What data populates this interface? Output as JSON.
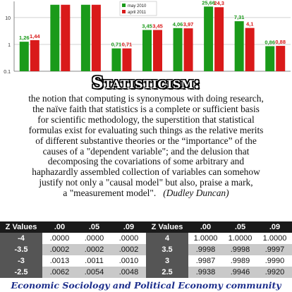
{
  "chart_data": {
    "type": "bar",
    "y_scale": "log",
    "ylim": [
      0.1,
      40
    ],
    "y_ticks": [
      "0.1",
      "1",
      "10"
    ],
    "grid": true,
    "legend_placement": "top-center",
    "series": [
      {
        "name": "may 2010",
        "color": "#1a9a1a",
        "values": [
          1.26,
          30,
          30,
          0.71,
          3.45,
          4.06,
          25.66,
          7.31,
          0.86
        ],
        "labels": [
          "1,26",
          "",
          "",
          "0,71",
          "3,45",
          "4,06",
          "25,66",
          "7,31",
          "0,86"
        ]
      },
      {
        "name": "april 2011",
        "color": "#d91a1a",
        "values": [
          1.44,
          30,
          30,
          0.71,
          3.45,
          3.97,
          24.3,
          4.1,
          0.88
        ],
        "labels": [
          "1,44",
          "",
          "",
          "0,71",
          "3,45",
          "3,97",
          "24,3",
          "4,1",
          "0,88"
        ]
      }
    ],
    "categories": [
      "",
      "",
      "",
      "",
      "",
      "",
      "",
      "",
      ""
    ]
  },
  "headline": "Statisticism:",
  "definition": {
    "lines": [
      "the notion that computing is synonymous with doing research,",
      "the naïve faith that statistics is a complete or sufficient basis",
      "for scientific methodology, the superstition that statistical",
      "formulas exist for evaluating such things as the relative merits",
      "of different substantive theories or the “importance” of the",
      "causes of a \"dependent variable\"; and the delusion that",
      "decomposing the covariations of some arbitrary and",
      "haphazardly assembled collection of variables can somehow",
      "justify not only a \"causal model\" but also, praise a mark,"
    ],
    "last_line": "a \"measurement model\".",
    "author": "(Dudley Duncan)"
  },
  "z_table": {
    "left": {
      "header": [
        "Z Values",
        ".00",
        ".05",
        ".09"
      ],
      "rows": [
        [
          "-4",
          ".0000",
          ".0000",
          ".0000"
        ],
        [
          "-3.5",
          ".0002",
          ".0002",
          ".0002"
        ],
        [
          "-3",
          ".0013",
          ".0011",
          ".0010"
        ],
        [
          "-2.5",
          ".0062",
          ".0054",
          ".0048"
        ]
      ]
    },
    "right": {
      "header": [
        "Z Values",
        ".00",
        ".05",
        ".09"
      ],
      "rows": [
        [
          "4",
          "1.0000",
          "1.0000",
          "1.0000"
        ],
        [
          "3.5",
          ".9998",
          ".9998",
          ".9997"
        ],
        [
          "3",
          ".9987",
          ".9989",
          ".9990"
        ],
        [
          "2.5",
          ".9938",
          ".9946",
          ".9920"
        ]
      ]
    }
  },
  "footer": "Economic Sociology and Political Economy community"
}
